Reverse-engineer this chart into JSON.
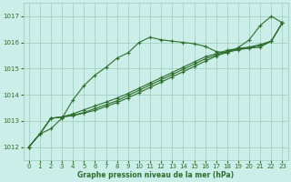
{
  "background_color": "#cceee8",
  "grid_color": "#99ccbb",
  "line_color": "#2d6e2d",
  "title": "Graphe pression niveau de la mer (hPa)",
  "xlim": [
    -0.5,
    23.5
  ],
  "ylim": [
    1011.5,
    1017.5
  ],
  "yticks": [
    1012,
    1013,
    1014,
    1015,
    1016,
    1017
  ],
  "xticks": [
    0,
    1,
    2,
    3,
    4,
    5,
    6,
    7,
    8,
    9,
    10,
    11,
    12,
    13,
    14,
    15,
    16,
    17,
    18,
    19,
    20,
    21,
    22,
    23
  ],
  "series": [
    [
      1012.0,
      1012.5,
      1012.7,
      1013.1,
      1013.8,
      1014.35,
      1014.75,
      1015.05,
      1015.4,
      1015.6,
      1016.0,
      1016.2,
      1016.1,
      1016.05,
      1016.0,
      1015.95,
      1015.85,
      1015.65,
      1015.6,
      1015.8,
      1016.1,
      1016.65,
      1017.0,
      1016.75
    ],
    [
      1012.0,
      1012.5,
      1013.1,
      1013.15,
      1013.2,
      1013.3,
      1013.4,
      1013.55,
      1013.7,
      1013.88,
      1014.08,
      1014.28,
      1014.48,
      1014.68,
      1014.88,
      1015.08,
      1015.28,
      1015.48,
      1015.62,
      1015.72,
      1015.78,
      1015.82,
      1016.05,
      1016.75
    ],
    [
      1012.0,
      1012.5,
      1013.1,
      1013.15,
      1013.22,
      1013.32,
      1013.47,
      1013.62,
      1013.77,
      1013.97,
      1014.17,
      1014.37,
      1014.57,
      1014.77,
      1014.97,
      1015.17,
      1015.37,
      1015.52,
      1015.66,
      1015.74,
      1015.8,
      1015.87,
      1016.05,
      1016.75
    ],
    [
      1012.0,
      1012.5,
      1013.1,
      1013.15,
      1013.27,
      1013.42,
      1013.57,
      1013.72,
      1013.87,
      1014.05,
      1014.25,
      1014.45,
      1014.65,
      1014.85,
      1015.05,
      1015.25,
      1015.45,
      1015.57,
      1015.7,
      1015.77,
      1015.82,
      1015.92,
      1016.05,
      1016.75
    ]
  ],
  "marker": "+",
  "markersize": 3,
  "linewidth": 0.8,
  "title_fontsize": 5.5,
  "tick_fontsize": 5.0
}
